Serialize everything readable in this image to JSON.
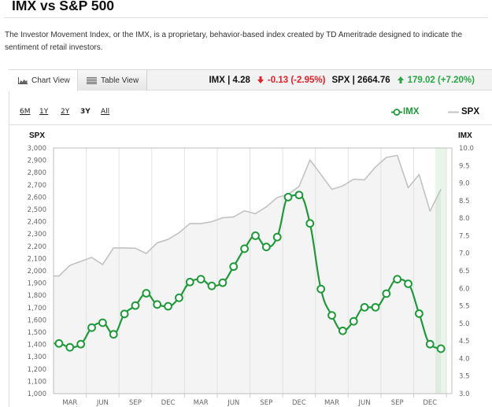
{
  "page": {
    "title": "IMX vs S&P 500",
    "description": "The Investor Movement Index, or the IMX, is a proprietary, behavior-based index created by TD Ameritrade designed to indicate the sentiment of retail investors."
  },
  "tabs": [
    {
      "label": "Chart View",
      "icon": "area-chart-icon",
      "active": true
    },
    {
      "label": "Table View",
      "icon": "table-lines-icon",
      "active": false
    }
  ],
  "quote": {
    "imx_label": "IMX | 4.28",
    "imx_change": "-0.13 (-2.95%)",
    "imx_direction": "down",
    "spx_label": "SPX | 2664.76",
    "spx_change": "179.02 (+7.20%)",
    "spx_direction": "up"
  },
  "ranges": [
    {
      "label": "6M",
      "selected": false
    },
    {
      "label": "1Y",
      "selected": false
    },
    {
      "label": "2Y",
      "selected": false
    },
    {
      "label": "3Y",
      "selected": true
    },
    {
      "label": "All",
      "selected": false
    }
  ],
  "colors": {
    "imx": "#1e9a3b",
    "spx": "#c2c2c2",
    "spx_area": "#f4f4f4",
    "down": "#e31e24",
    "up": "#27a844",
    "highlight": "#1e9a3b"
  },
  "chart_data": {
    "type": "line",
    "title": "IMX vs S&P 500",
    "x_interval": "monthly",
    "x_ticks": [
      {
        "index": 1,
        "label": "MAR"
      },
      {
        "index": 4,
        "label": "JUN"
      },
      {
        "index": 7,
        "label": "SEP"
      },
      {
        "index": 10,
        "label": "DEC"
      },
      {
        "index": 13,
        "label": "MAR"
      },
      {
        "index": 16,
        "label": "JUN"
      },
      {
        "index": 19,
        "label": "SEP"
      },
      {
        "index": 22,
        "label": "DEC"
      },
      {
        "index": 25,
        "label": "MAR"
      },
      {
        "index": 28,
        "label": "JUN"
      },
      {
        "index": 31,
        "label": "SEP"
      },
      {
        "index": 34,
        "label": "DEC"
      }
    ],
    "highlight_index": 35,
    "y_left": {
      "label": "SPX",
      "range": [
        1000,
        3000
      ],
      "ticks": [
        {
          "value": 1000,
          "label": "1,000"
        },
        {
          "value": 1100,
          "label": "1,100"
        },
        {
          "value": 1200,
          "label": "1,200"
        },
        {
          "value": 1300,
          "label": "1,300"
        },
        {
          "value": 1400,
          "label": "1,400"
        },
        {
          "value": 1500,
          "label": "1,500"
        },
        {
          "value": 1600,
          "label": "1,600"
        },
        {
          "value": 1700,
          "label": "1,700"
        },
        {
          "value": 1800,
          "label": "1,800"
        },
        {
          "value": 1900,
          "label": "1,900"
        },
        {
          "value": 2000,
          "label": "2,000"
        },
        {
          "value": 2100,
          "label": "2,100"
        },
        {
          "value": 2200,
          "label": "2,200"
        },
        {
          "value": 2300,
          "label": "2,300"
        },
        {
          "value": 2400,
          "label": "2,400"
        },
        {
          "value": 2500,
          "label": "2,500"
        },
        {
          "value": 2600,
          "label": "2,600"
        },
        {
          "value": 2700,
          "label": "2,700"
        },
        {
          "value": 2800,
          "label": "2,800"
        },
        {
          "value": 2900,
          "label": "2,900"
        },
        {
          "value": 3000,
          "label": "3,000"
        }
      ]
    },
    "y_right": {
      "label": "IMX",
      "range": [
        3,
        10
      ],
      "ticks": [
        {
          "value": 3.0,
          "label": "3.0"
        },
        {
          "value": 3.5,
          "label": "3.5"
        },
        {
          "value": 4.0,
          "label": "4.0"
        },
        {
          "value": 4.5,
          "label": "4.5"
        },
        {
          "value": 5.0,
          "label": "5.0"
        },
        {
          "value": 5.5,
          "label": "5.5"
        },
        {
          "value": 6.0,
          "label": "6.0"
        },
        {
          "value": 6.5,
          "label": "6.5"
        },
        {
          "value": 7.0,
          "label": "7.0"
        },
        {
          "value": 7.5,
          "label": "7.5"
        },
        {
          "value": 8.0,
          "label": "8.0"
        },
        {
          "value": 8.5,
          "label": "8.5"
        },
        {
          "value": 9.0,
          "label": "9.0"
        },
        {
          "value": 9.5,
          "label": "9.5"
        },
        {
          "value": 10.0,
          "label": "10.0"
        }
      ]
    },
    "series": [
      {
        "name": "IMX",
        "axis": "right",
        "style": "spline-with-markers",
        "values": [
          4.43,
          4.32,
          4.41,
          4.88,
          5.02,
          4.69,
          5.27,
          5.51,
          5.86,
          5.54,
          5.49,
          5.73,
          6.18,
          6.26,
          6.07,
          6.16,
          6.62,
          7.13,
          7.5,
          7.18,
          7.46,
          8.6,
          8.66,
          7.85,
          5.98,
          5.23,
          4.79,
          5.06,
          5.46,
          5.46,
          5.85,
          6.26,
          6.13,
          5.28,
          4.41,
          4.28
        ]
      },
      {
        "name": "SPX",
        "axis": "left",
        "style": "area-line",
        "values": [
          1958,
          2044,
          2077,
          2109,
          2051,
          2186,
          2186,
          2184,
          2141,
          2228,
          2256,
          2310,
          2385,
          2384,
          2400,
          2432,
          2439,
          2489,
          2465,
          2521,
          2597,
          2623,
          2687,
          2903,
          2784,
          2664,
          2691,
          2746,
          2741,
          2845,
          2924,
          2940,
          2676,
          2784,
          2486,
          2665
        ]
      }
    ],
    "legend": {
      "position": "top-right",
      "entries": [
        "IMX",
        "SPX"
      ]
    },
    "grid": {
      "vertical": true,
      "horizontal": false
    }
  }
}
